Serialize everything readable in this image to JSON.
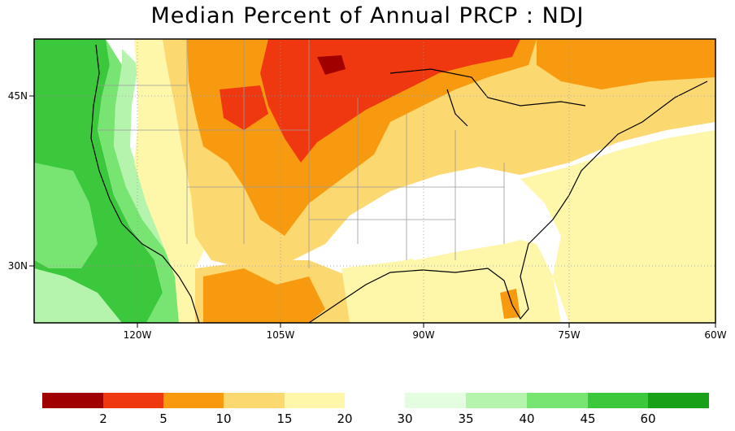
{
  "title": "Median Percent of Annual PRCP  :  NDJ",
  "axes": {
    "y_ticks": [
      "45N",
      "30N"
    ],
    "x_ticks": [
      "120W",
      "105W",
      "90W",
      "75W",
      "60W"
    ]
  },
  "legend": {
    "boxes": [
      {
        "color": "#a00000"
      },
      {
        "color": "#f03810"
      },
      {
        "color": "#f89a10"
      },
      {
        "color": "#fcd870"
      },
      {
        "color": "#fef6a8"
      },
      {
        "color": "#e4fce0"
      },
      {
        "color": "#b4f4ac"
      },
      {
        "color": "#78e472"
      },
      {
        "color": "#3cc83c"
      },
      {
        "color": "#18a018"
      }
    ],
    "labels": [
      "2",
      "5",
      "10",
      "15",
      "20",
      "30",
      "35",
      "40",
      "45",
      "60"
    ]
  },
  "colors": {
    "dark_red": "#a00000",
    "red": "#f03810",
    "orange": "#f89a10",
    "light_orange": "#fcd870",
    "pale_yellow": "#fef6a8",
    "white": "#ffffff",
    "pale_green": "#e4fce0",
    "light_green": "#b4f4ac",
    "green": "#78e472",
    "mid_green": "#3cc83c",
    "dark_green": "#18a018"
  }
}
